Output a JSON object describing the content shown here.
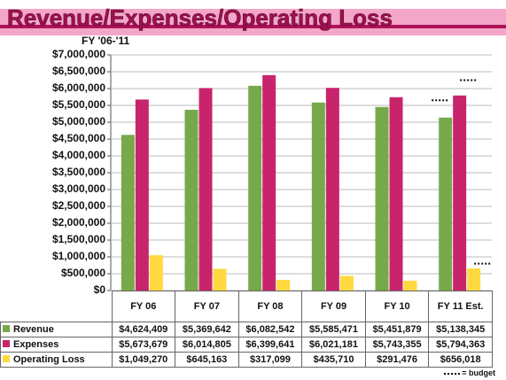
{
  "chart_data": {
    "type": "bar",
    "title": "Revenue/Expenses/Operating Loss",
    "subtitle": "FY '06-'11",
    "categories": [
      "FY 06",
      "FY 07",
      "FY 08",
      "FY 09",
      "FY 10",
      "FY 11 Est."
    ],
    "series": [
      {
        "name": "Revenue",
        "color": "#77a94a",
        "values": [
          4624409,
          5369642,
          6082542,
          5585471,
          5451879,
          5138345
        ],
        "value_labels": [
          "$4,624,409",
          "$5,369,642",
          "$6,082,542",
          "$5,585,471",
          "$5,451,879",
          "$5,138,345"
        ]
      },
      {
        "name": "Expenses",
        "color": "#c8246c",
        "values": [
          5673679,
          6014805,
          6399641,
          6021181,
          5743355,
          5794363
        ],
        "value_labels": [
          "$5,673,679",
          "$6,014,805",
          "$6,399,641",
          "$6,021,181",
          "$5,743,355",
          "$5,794,363"
        ]
      },
      {
        "name": "Operating Loss",
        "color": "#ffd93f",
        "values": [
          1049270,
          645163,
          317099,
          435710,
          291476,
          656018
        ],
        "value_labels": [
          "$1,049,270",
          "$645,163",
          "$317,099",
          "$435,710",
          "$291,476",
          "$656,018"
        ]
      }
    ],
    "budget": {
      "label": "= budget",
      "values": [
        5650000,
        6250000,
        800000
      ]
    },
    "ylim": [
      0,
      7000000
    ],
    "yticks": [
      {
        "value": 0,
        "label": "$0"
      },
      {
        "value": 500000,
        "label": "$500,000"
      },
      {
        "value": 1000000,
        "label": "$1,000,000"
      },
      {
        "value": 1500000,
        "label": "$1,500,000"
      },
      {
        "value": 2000000,
        "label": "$2,000,000"
      },
      {
        "value": 2500000,
        "label": "$2,500,000"
      },
      {
        "value": 3000000,
        "label": "$3,000,000"
      },
      {
        "value": 3500000,
        "label": "$3,500,000"
      },
      {
        "value": 4000000,
        "label": "$4,000,000"
      },
      {
        "value": 4500000,
        "label": "$4,500,000"
      },
      {
        "value": 5000000,
        "label": "$5,000,000"
      },
      {
        "value": 5500000,
        "label": "$5,500,000"
      },
      {
        "value": 6000000,
        "label": "$6,000,000"
      },
      {
        "value": 6500000,
        "label": "$6,500,000"
      },
      {
        "value": 7000000,
        "label": "$7,000,000"
      }
    ],
    "grid": true
  }
}
